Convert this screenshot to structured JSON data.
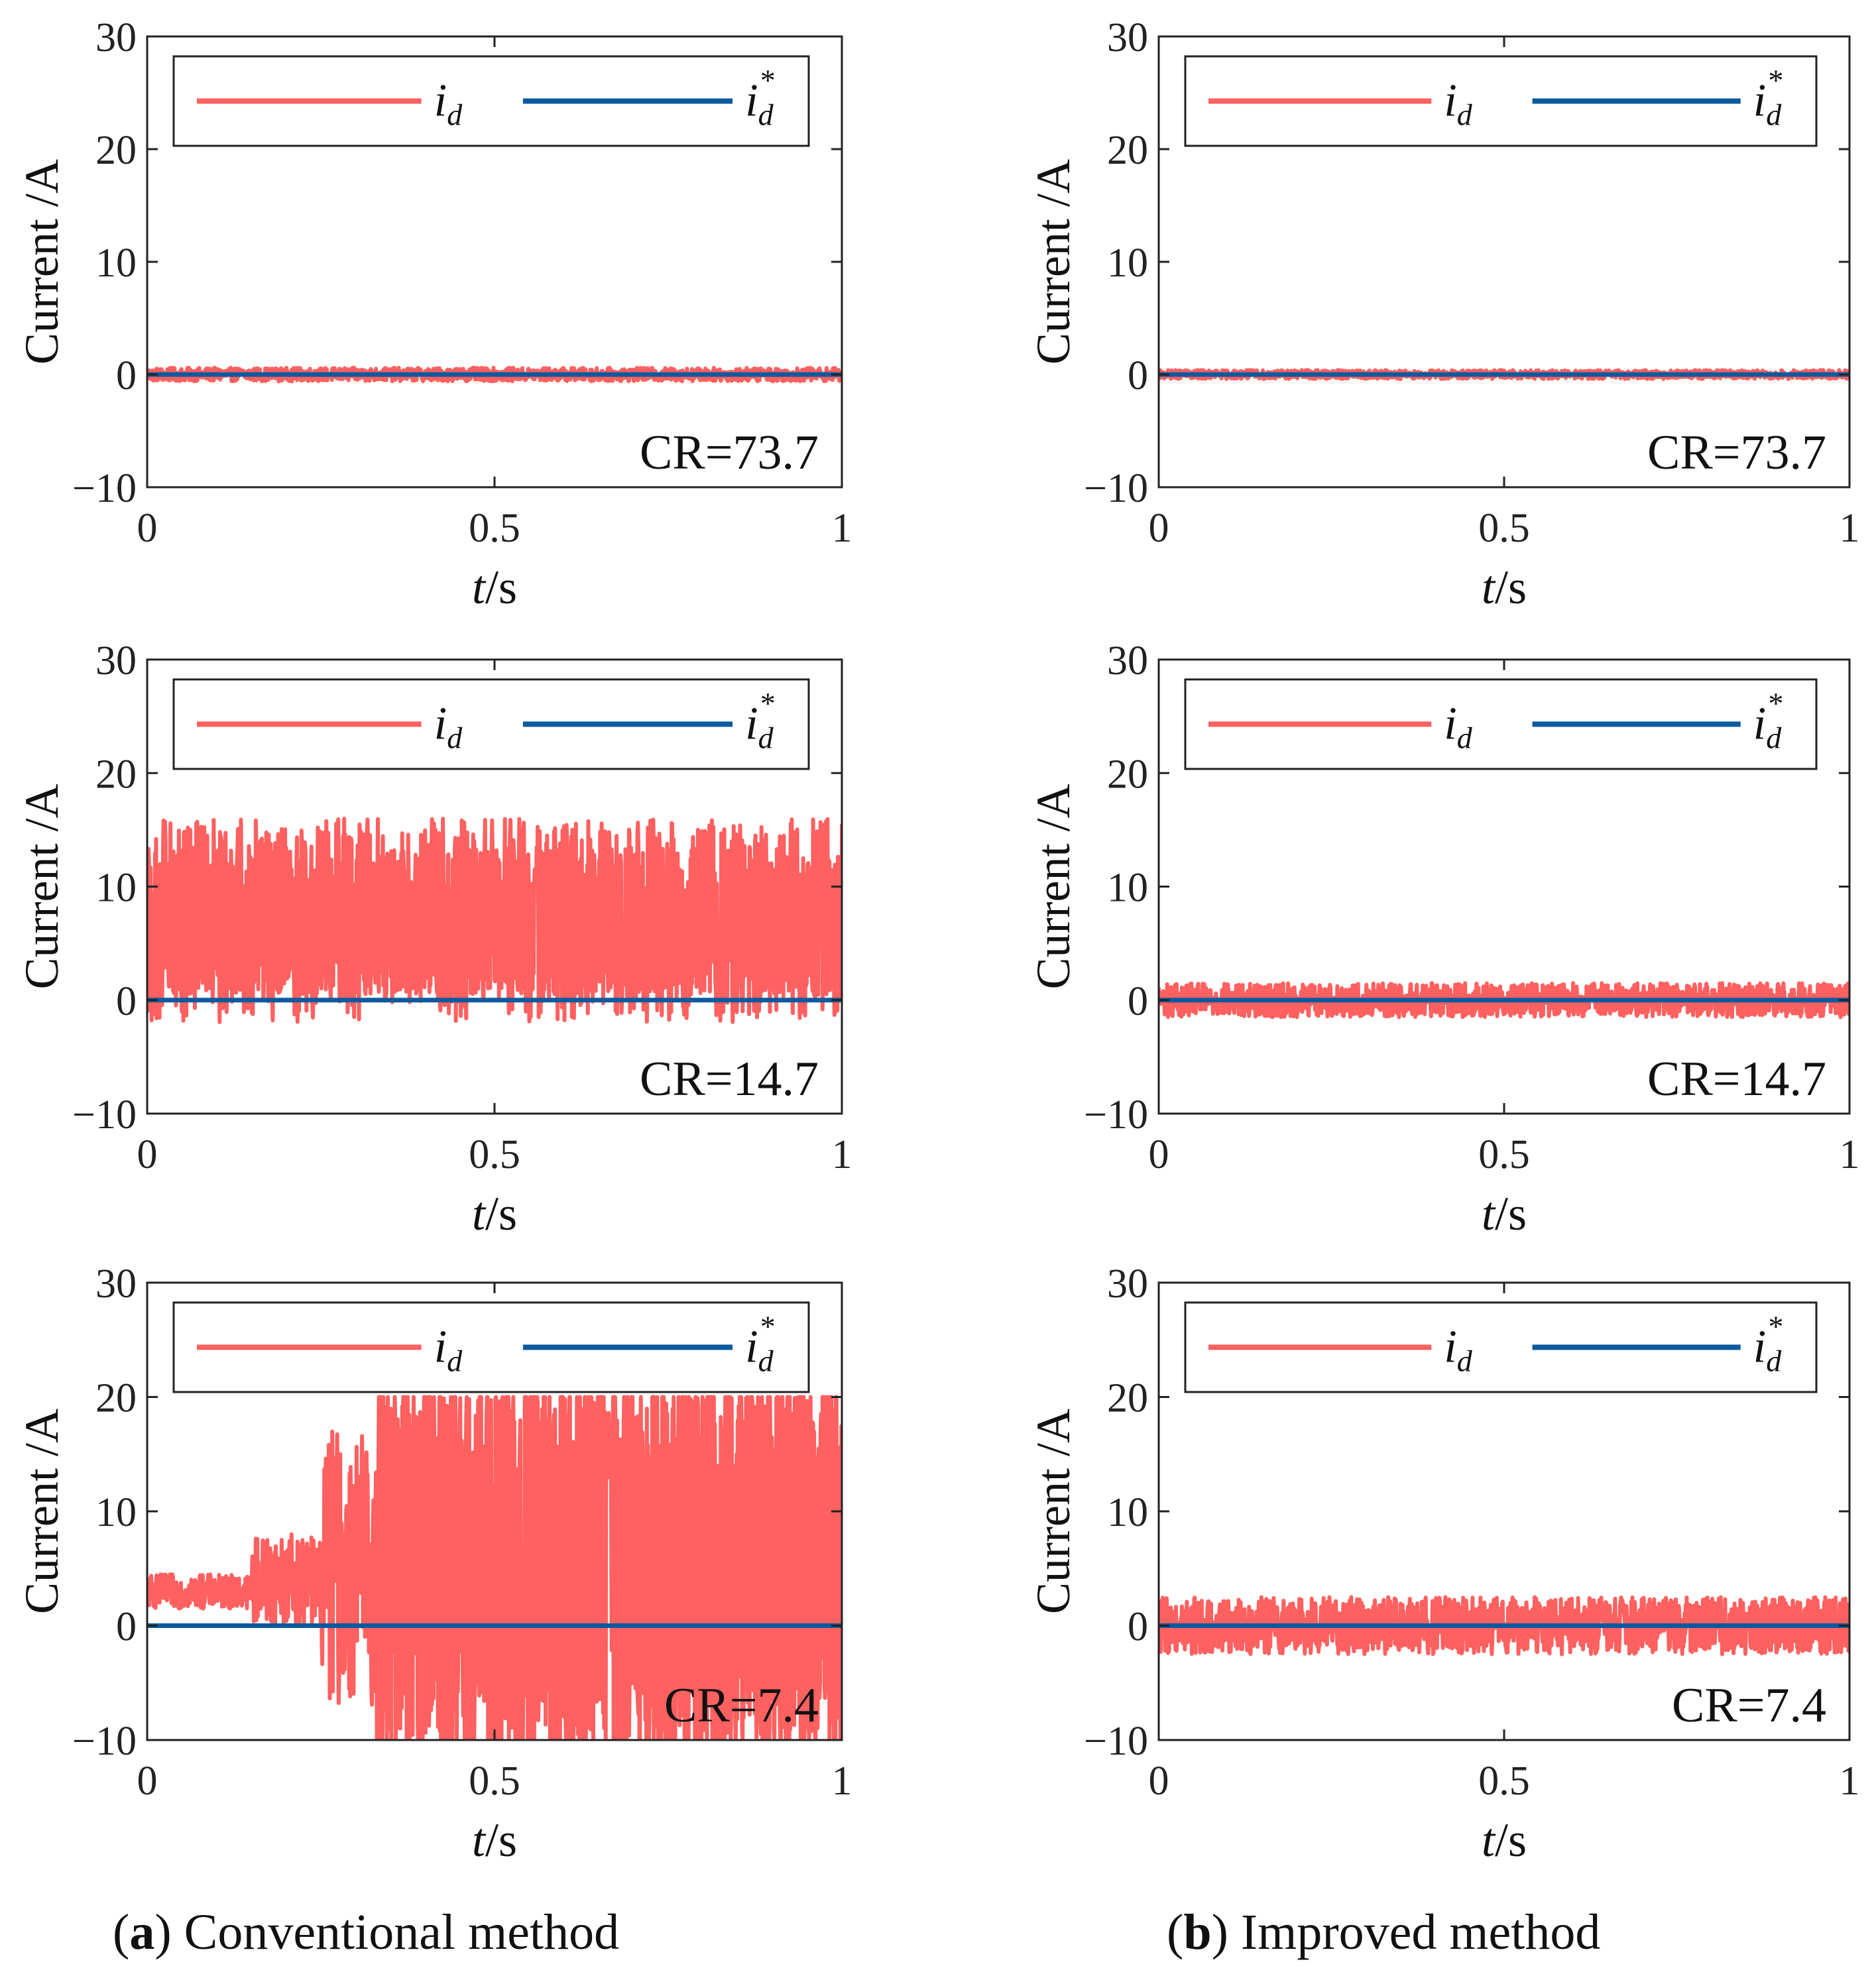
{
  "figure": {
    "captions": {
      "a": {
        "letter": "a",
        "text": " Conventional method"
      },
      "b": {
        "letter": "b",
        "text": " Improved method"
      }
    }
  },
  "axes_common": {
    "ylabel": "Current /A",
    "xlabel_var": "t",
    "xlabel_unit": "/s",
    "xticks": [
      0,
      0.5,
      1
    ],
    "xtick_labels": [
      "0",
      "0.5",
      "1"
    ],
    "yticks": [
      -10,
      0,
      10,
      20,
      30
    ],
    "ytick_labels": [
      "−10",
      "0",
      "10",
      "20",
      "30"
    ],
    "xlim": [
      0,
      1
    ],
    "ylim": [
      -10,
      30
    ],
    "legend": {
      "id_main": "i",
      "id_sub": "d",
      "idstar_main": "i",
      "idstar_sub": "d",
      "idstar_sup": "*"
    }
  },
  "colors": {
    "id": "#ff6060",
    "id_ref": "#0c5a9e"
  },
  "chart_data": [
    {
      "type": "line",
      "column": "a",
      "row": 1,
      "cr_label": "CR=73.7",
      "series": [
        {
          "name": "id",
          "behavior": "ripple",
          "mean": 0,
          "amplitude": 0.6
        },
        {
          "name": "id*",
          "value": 0
        }
      ],
      "xlim": [
        0,
        1
      ],
      "ylim": [
        -10,
        30
      ],
      "grid": false,
      "legend_position": "top"
    },
    {
      "type": "line",
      "column": "a",
      "row": 2,
      "cr_label": "CR=14.7",
      "series": [
        {
          "name": "id",
          "behavior": "oscillation",
          "mean": 7,
          "min": 0.5,
          "max": 16
        },
        {
          "name": "id*",
          "value": 0
        }
      ],
      "xlim": [
        0,
        1
      ],
      "ylim": [
        -10,
        30
      ],
      "grid": false,
      "legend_position": "top"
    },
    {
      "type": "line",
      "column": "a",
      "row": 3,
      "cr_label": "CR=7.4",
      "series": [
        {
          "name": "id",
          "behavior": "growing instability",
          "segments": [
            {
              "t": [
                0,
                0.15
              ],
              "mean": 3,
              "amplitude": 1.5
            },
            {
              "t": [
                0.15,
                0.25
              ],
              "mean": 4,
              "amplitude": 4
            },
            {
              "t": [
                0.25,
                0.33
              ],
              "mean": 5,
              "amplitude": 12
            },
            {
              "t": [
                0.33,
                1.0
              ],
              "min": -10,
              "max": 20
            }
          ]
        },
        {
          "name": "id*",
          "value": 0
        }
      ],
      "xlim": [
        0,
        1
      ],
      "ylim": [
        -10,
        30
      ],
      "grid": false,
      "legend_position": "top"
    },
    {
      "type": "line",
      "column": "b",
      "row": 1,
      "cr_label": "CR=73.7",
      "series": [
        {
          "name": "id",
          "behavior": "ripple",
          "mean": 0,
          "amplitude": 0.4
        },
        {
          "name": "id*",
          "value": 0
        }
      ],
      "xlim": [
        0,
        1
      ],
      "ylim": [
        -10,
        30
      ],
      "grid": false,
      "legend_position": "top"
    },
    {
      "type": "line",
      "column": "b",
      "row": 2,
      "cr_label": "CR=14.7",
      "series": [
        {
          "name": "id",
          "behavior": "ripple",
          "mean": 0,
          "amplitude": 1.5
        },
        {
          "name": "id*",
          "value": 0
        }
      ],
      "xlim": [
        0,
        1
      ],
      "ylim": [
        -10,
        30
      ],
      "grid": false,
      "legend_position": "top"
    },
    {
      "type": "line",
      "column": "b",
      "row": 3,
      "cr_label": "CR=7.4",
      "series": [
        {
          "name": "id",
          "behavior": "ripple",
          "mean": 0,
          "amplitude": 2.5
        },
        {
          "name": "id*",
          "value": 0
        }
      ],
      "xlim": [
        0,
        1
      ],
      "ylim": [
        -10,
        30
      ],
      "grid": false,
      "legend_position": "top"
    }
  ]
}
